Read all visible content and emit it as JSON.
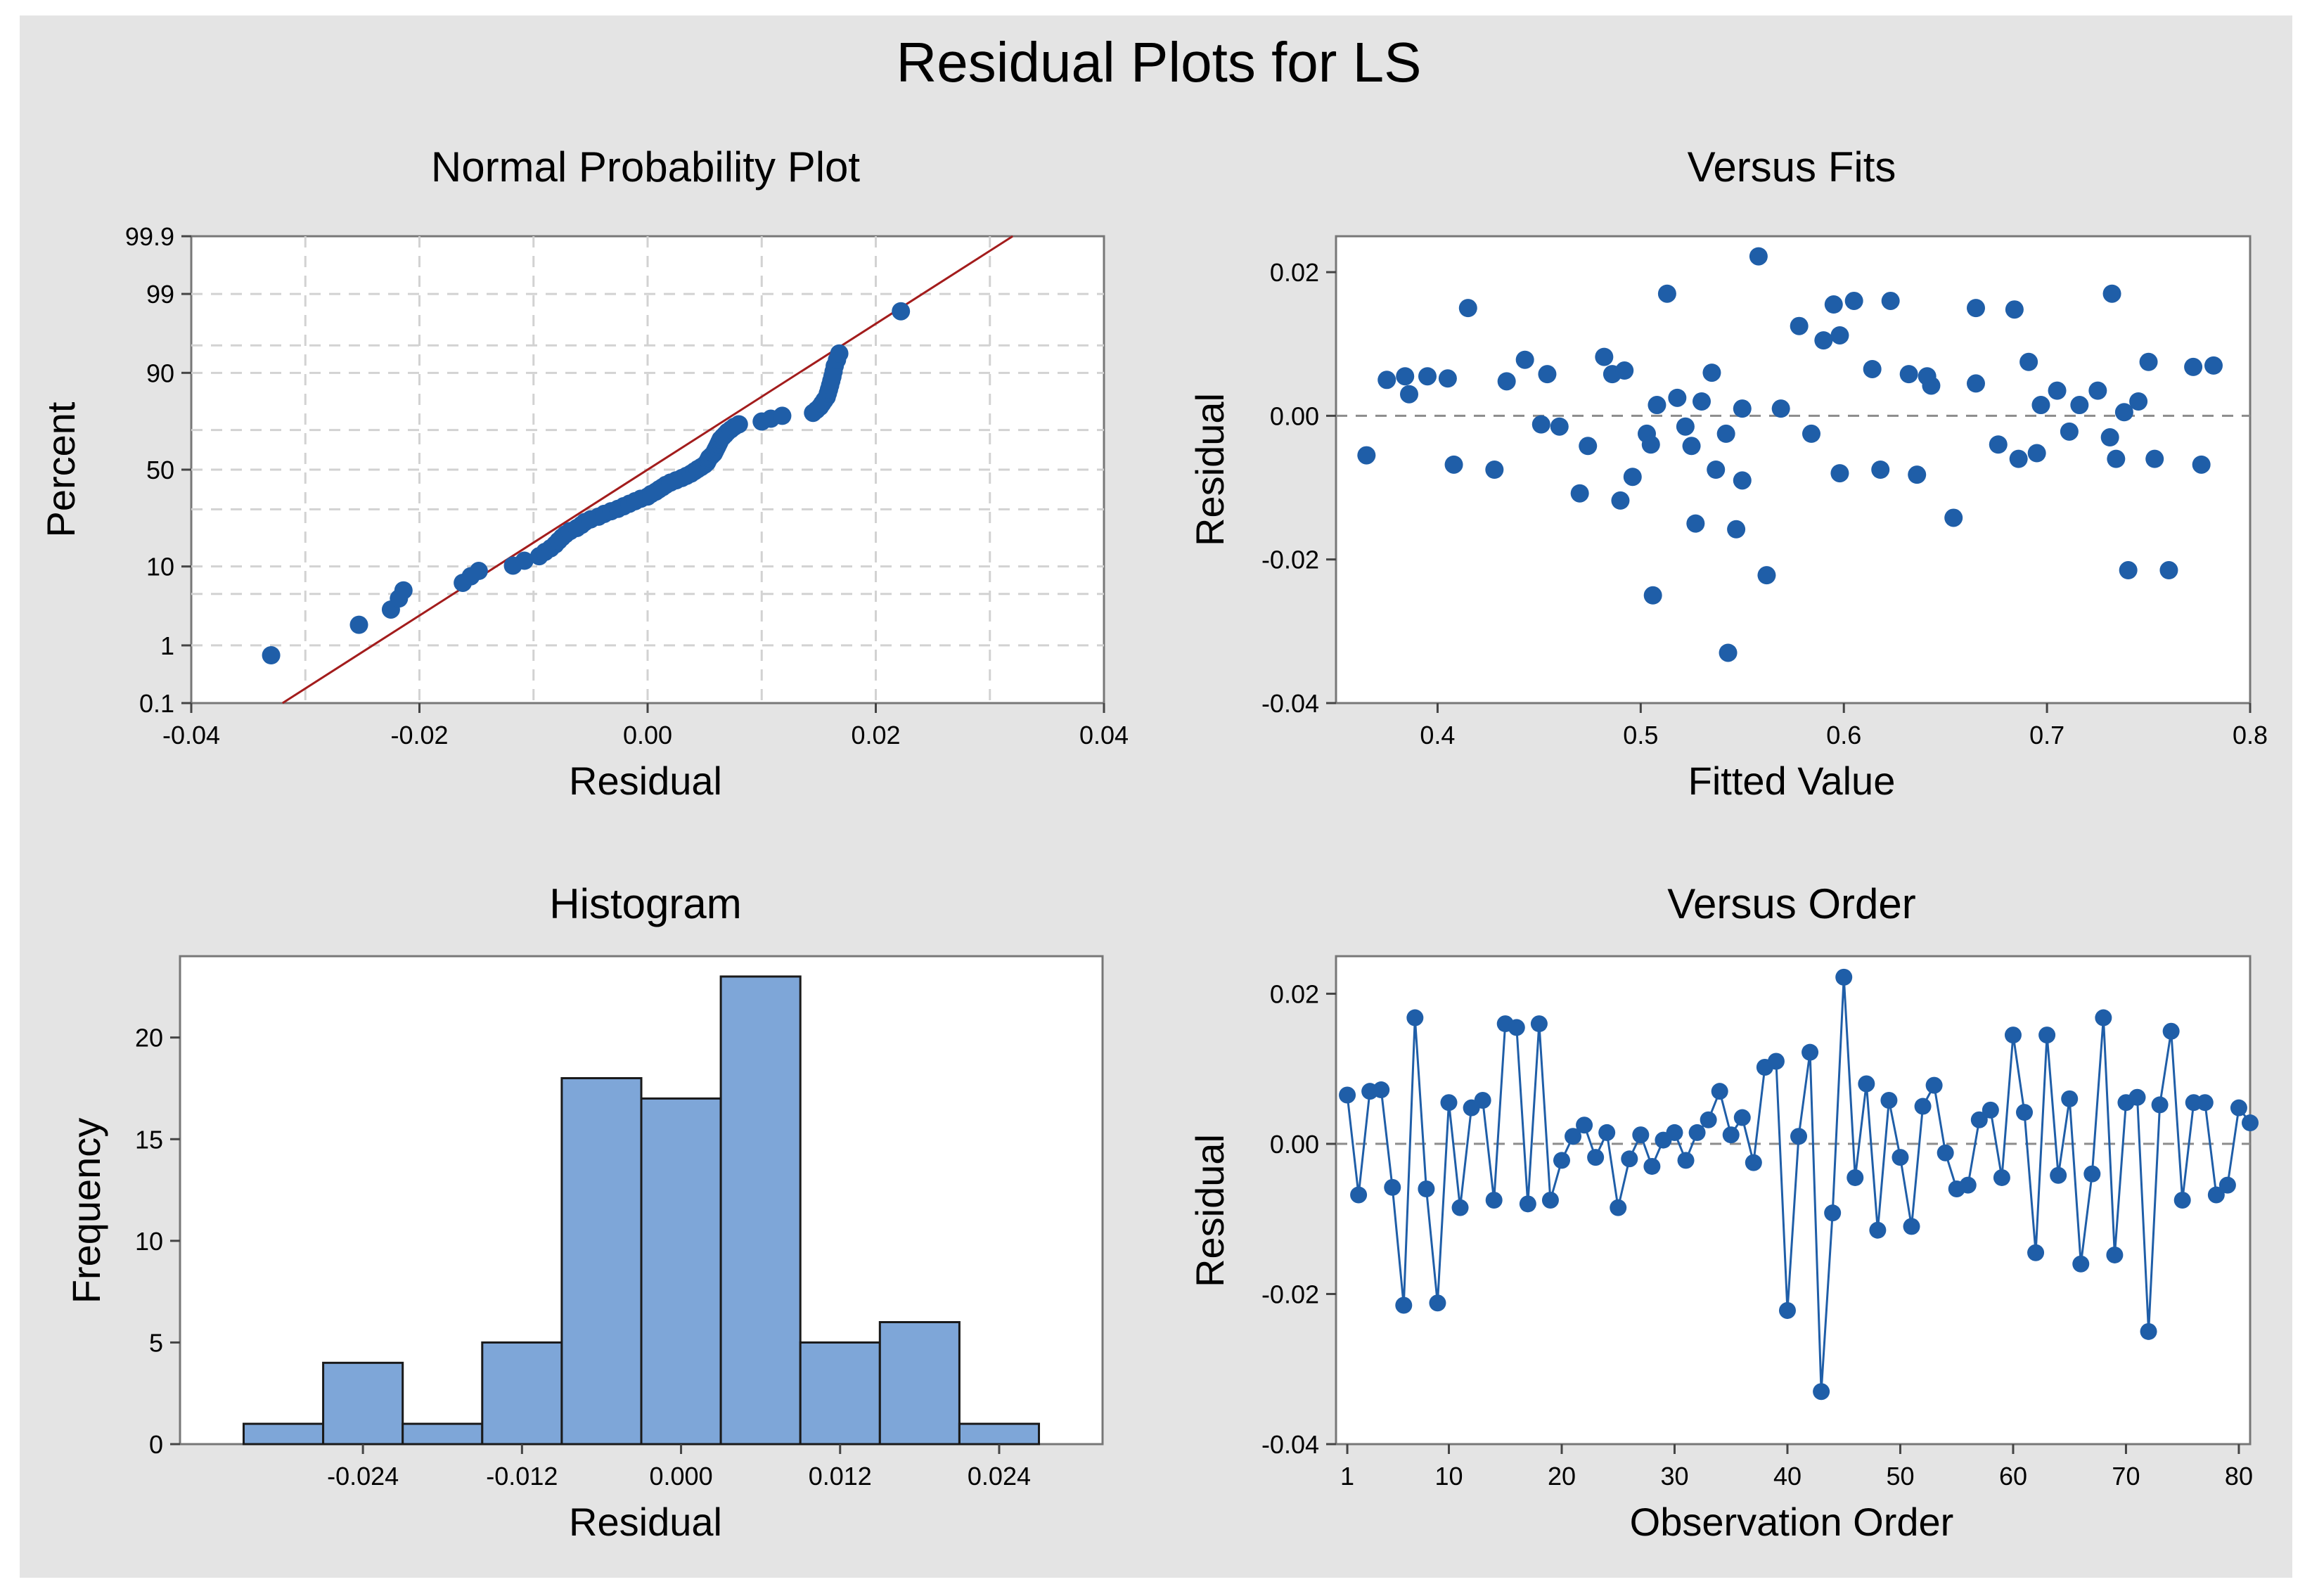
{
  "figure": {
    "title": "Residual Plots for LS"
  },
  "colors": {
    "panel": "#e4e4e4",
    "marker": "#1f5ea8",
    "fit_line": "#a31c1c",
    "bar_fill": "#7ea6d8",
    "bar_edge": "#1a1a1a"
  },
  "chart_data": [
    {
      "type": "scatter",
      "title": "Normal Probability Plot",
      "xlabel": "Residual",
      "ylabel": "Percent",
      "xlim": [
        -0.04,
        0.04
      ],
      "xticks": [
        "-0.04",
        "-0.02",
        "0.00",
        "0.02",
        "0.04"
      ],
      "yticks": [
        "0.1",
        "1",
        "10",
        "50",
        "90",
        "99",
        "99.9"
      ],
      "y_scale": "normal probability",
      "fit_line": {
        "x": [
          -0.032,
          0.032
        ],
        "percent": [
          0.1,
          99.9
        ]
      },
      "points": [
        {
          "x": -0.033,
          "p": 0.7
        },
        {
          "x": -0.0253,
          "p": 2.0
        },
        {
          "x": -0.0225,
          "p": 3.2
        },
        {
          "x": -0.0218,
          "p": 4.4
        },
        {
          "x": -0.0214,
          "p": 5.5
        },
        {
          "x": -0.0162,
          "p": 6.7
        },
        {
          "x": -0.0155,
          "p": 7.9
        },
        {
          "x": -0.0148,
          "p": 9.0
        },
        {
          "x": -0.0118,
          "p": 10.2
        },
        {
          "x": -0.0108,
          "p": 11.4
        },
        {
          "x": -0.0095,
          "p": 12.6
        },
        {
          "x": -0.009,
          "p": 13.8
        },
        {
          "x": -0.0085,
          "p": 14.9
        },
        {
          "x": -0.0081,
          "p": 16.1
        },
        {
          "x": -0.0078,
          "p": 17.3
        },
        {
          "x": -0.0075,
          "p": 18.5
        },
        {
          "x": -0.0072,
          "p": 19.6
        },
        {
          "x": -0.0068,
          "p": 20.8
        },
        {
          "x": -0.0062,
          "p": 22.0
        },
        {
          "x": -0.0058,
          "p": 23.2
        },
        {
          "x": -0.0055,
          "p": 24.4
        },
        {
          "x": -0.005,
          "p": 25.5
        },
        {
          "x": -0.0043,
          "p": 26.7
        },
        {
          "x": -0.0038,
          "p": 27.9
        },
        {
          "x": -0.0032,
          "p": 29.1
        },
        {
          "x": -0.0026,
          "p": 30.2
        },
        {
          "x": -0.0021,
          "p": 31.4
        },
        {
          "x": -0.0016,
          "p": 32.6
        },
        {
          "x": -0.0011,
          "p": 33.8
        },
        {
          "x": -0.0006,
          "p": 35.0
        },
        {
          "x": 0.0,
          "p": 36.1
        },
        {
          "x": 0.0003,
          "p": 37.3
        },
        {
          "x": 0.0007,
          "p": 38.5
        },
        {
          "x": 0.001,
          "p": 39.7
        },
        {
          "x": 0.0013,
          "p": 40.8
        },
        {
          "x": 0.0016,
          "p": 42.0
        },
        {
          "x": 0.002,
          "p": 43.2
        },
        {
          "x": 0.0025,
          "p": 44.4
        },
        {
          "x": 0.003,
          "p": 45.6
        },
        {
          "x": 0.0034,
          "p": 46.7
        },
        {
          "x": 0.0038,
          "p": 47.9
        },
        {
          "x": 0.0041,
          "p": 49.1
        },
        {
          "x": 0.0044,
          "p": 50.3
        },
        {
          "x": 0.0047,
          "p": 51.4
        },
        {
          "x": 0.005,
          "p": 52.6
        },
        {
          "x": 0.0052,
          "p": 53.8
        },
        {
          "x": 0.0053,
          "p": 55.0
        },
        {
          "x": 0.0054,
          "p": 56.2
        },
        {
          "x": 0.0056,
          "p": 57.3
        },
        {
          "x": 0.0058,
          "p": 58.5
        },
        {
          "x": 0.0059,
          "p": 59.7
        },
        {
          "x": 0.006,
          "p": 60.9
        },
        {
          "x": 0.0061,
          "p": 62.0
        },
        {
          "x": 0.0062,
          "p": 63.2
        },
        {
          "x": 0.0063,
          "p": 64.4
        },
        {
          "x": 0.0064,
          "p": 65.6
        },
        {
          "x": 0.0066,
          "p": 66.8
        },
        {
          "x": 0.0068,
          "p": 67.9
        },
        {
          "x": 0.007,
          "p": 69.1
        },
        {
          "x": 0.0073,
          "p": 70.3
        },
        {
          "x": 0.0076,
          "p": 71.5
        },
        {
          "x": 0.008,
          "p": 72.6
        },
        {
          "x": 0.01,
          "p": 73.8
        },
        {
          "x": 0.0108,
          "p": 75.0
        },
        {
          "x": 0.0118,
          "p": 76.2
        },
        {
          "x": 0.0145,
          "p": 77.4
        },
        {
          "x": 0.0148,
          "p": 78.5
        },
        {
          "x": 0.0151,
          "p": 79.7
        },
        {
          "x": 0.0153,
          "p": 80.9
        },
        {
          "x": 0.0155,
          "p": 82.1
        },
        {
          "x": 0.0157,
          "p": 83.2
        },
        {
          "x": 0.0158,
          "p": 84.4
        },
        {
          "x": 0.0159,
          "p": 85.6
        },
        {
          "x": 0.016,
          "p": 86.8
        },
        {
          "x": 0.0161,
          "p": 88.0
        },
        {
          "x": 0.0162,
          "p": 89.1
        },
        {
          "x": 0.0163,
          "p": 90.3
        },
        {
          "x": 0.0164,
          "p": 91.5
        },
        {
          "x": 0.0166,
          "p": 92.7
        },
        {
          "x": 0.0168,
          "p": 93.8
        },
        {
          "x": 0.0222,
          "p": 98.2
        }
      ]
    },
    {
      "type": "scatter",
      "title": "Versus Fits",
      "xlabel": "Fitted Value",
      "ylabel": "Residual",
      "xlim": [
        0.35,
        0.8
      ],
      "ylim": [
        -0.04,
        0.025
      ],
      "xticks": [
        "0.4",
        "0.5",
        "0.6",
        "0.7",
        "0.8"
      ],
      "yticks": [
        "-0.04",
        "-0.02",
        "0.00",
        "0.02"
      ],
      "reference_line": 0.0,
      "points": [
        {
          "x": 0.365,
          "y": -0.0055
        },
        {
          "x": 0.375,
          "y": 0.005
        },
        {
          "x": 0.384,
          "y": 0.0055
        },
        {
          "x": 0.386,
          "y": 0.003
        },
        {
          "x": 0.395,
          "y": 0.0055
        },
        {
          "x": 0.405,
          "y": 0.0052
        },
        {
          "x": 0.408,
          "y": -0.0068
        },
        {
          "x": 0.415,
          "y": 0.015
        },
        {
          "x": 0.428,
          "y": -0.0075
        },
        {
          "x": 0.434,
          "y": 0.0048
        },
        {
          "x": 0.443,
          "y": 0.0078
        },
        {
          "x": 0.451,
          "y": -0.0012
        },
        {
          "x": 0.454,
          "y": 0.0058
        },
        {
          "x": 0.46,
          "y": -0.0015
        },
        {
          "x": 0.47,
          "y": -0.0108
        },
        {
          "x": 0.474,
          "y": -0.0042
        },
        {
          "x": 0.482,
          "y": 0.0082
        },
        {
          "x": 0.486,
          "y": 0.0058
        },
        {
          "x": 0.49,
          "y": -0.0118
        },
        {
          "x": 0.492,
          "y": 0.0063
        },
        {
          "x": 0.496,
          "y": -0.0085
        },
        {
          "x": 0.503,
          "y": -0.0025
        },
        {
          "x": 0.505,
          "y": -0.004
        },
        {
          "x": 0.506,
          "y": -0.025
        },
        {
          "x": 0.508,
          "y": 0.0015
        },
        {
          "x": 0.513,
          "y": 0.017
        },
        {
          "x": 0.518,
          "y": 0.0025
        },
        {
          "x": 0.522,
          "y": -0.0015
        },
        {
          "x": 0.525,
          "y": -0.0042
        },
        {
          "x": 0.527,
          "y": -0.015
        },
        {
          "x": 0.53,
          "y": 0.002
        },
        {
          "x": 0.535,
          "y": 0.006
        },
        {
          "x": 0.537,
          "y": -0.0075
        },
        {
          "x": 0.542,
          "y": -0.0025
        },
        {
          "x": 0.543,
          "y": -0.033
        },
        {
          "x": 0.547,
          "y": -0.0158
        },
        {
          "x": 0.55,
          "y": 0.001
        },
        {
          "x": 0.55,
          "y": -0.009
        },
        {
          "x": 0.558,
          "y": 0.0222
        },
        {
          "x": 0.562,
          "y": -0.0222
        },
        {
          "x": 0.569,
          "y": 0.001
        },
        {
          "x": 0.578,
          "y": 0.0125
        },
        {
          "x": 0.584,
          "y": -0.0025
        },
        {
          "x": 0.59,
          "y": 0.0105
        },
        {
          "x": 0.595,
          "y": 0.0155
        },
        {
          "x": 0.598,
          "y": 0.0112
        },
        {
          "x": 0.598,
          "y": -0.008
        },
        {
          "x": 0.605,
          "y": 0.016
        },
        {
          "x": 0.614,
          "y": 0.0065
        },
        {
          "x": 0.618,
          "y": -0.0075
        },
        {
          "x": 0.623,
          "y": 0.016
        },
        {
          "x": 0.632,
          "y": 0.0058
        },
        {
          "x": 0.636,
          "y": -0.0082
        },
        {
          "x": 0.641,
          "y": 0.0055
        },
        {
          "x": 0.643,
          "y": 0.0042
        },
        {
          "x": 0.654,
          "y": -0.0142
        },
        {
          "x": 0.665,
          "y": 0.015
        },
        {
          "x": 0.665,
          "y": 0.0045
        },
        {
          "x": 0.676,
          "y": -0.004
        },
        {
          "x": 0.684,
          "y": 0.0148
        },
        {
          "x": 0.686,
          "y": -0.006
        },
        {
          "x": 0.691,
          "y": 0.0075
        },
        {
          "x": 0.695,
          "y": -0.0052
        },
        {
          "x": 0.697,
          "y": 0.0015
        },
        {
          "x": 0.705,
          "y": 0.0035
        },
        {
          "x": 0.711,
          "y": -0.0022
        },
        {
          "x": 0.716,
          "y": 0.0015
        },
        {
          "x": 0.725,
          "y": 0.0035
        },
        {
          "x": 0.731,
          "y": -0.003
        },
        {
          "x": 0.732,
          "y": 0.017
        },
        {
          "x": 0.734,
          "y": -0.006
        },
        {
          "x": 0.738,
          "y": 0.0005
        },
        {
          "x": 0.74,
          "y": -0.0215
        },
        {
          "x": 0.745,
          "y": 0.002
        },
        {
          "x": 0.75,
          "y": 0.0075
        },
        {
          "x": 0.753,
          "y": -0.006
        },
        {
          "x": 0.76,
          "y": -0.0215
        },
        {
          "x": 0.772,
          "y": 0.0068
        },
        {
          "x": 0.776,
          "y": -0.0068
        },
        {
          "x": 0.782,
          "y": 0.007
        }
      ]
    },
    {
      "type": "bar",
      "title": "Histogram",
      "xlabel": "Residual",
      "ylabel": "Frequency",
      "ylim": [
        0,
        24
      ],
      "xticks": [
        "-0.024",
        "-0.012",
        "0.000",
        "0.012",
        "0.024"
      ],
      "yticks": [
        "0",
        "5",
        "10",
        "15",
        "20"
      ],
      "bin_width": 0.006,
      "bin_midpoints": [
        -0.03,
        -0.024,
        -0.018,
        -0.012,
        -0.006,
        0.0,
        0.006,
        0.012,
        0.018,
        0.024
      ],
      "values": [
        1,
        4,
        1,
        5,
        18,
        17,
        23,
        5,
        6,
        1
      ]
    },
    {
      "type": "line",
      "title": "Versus Order",
      "xlabel": "Observation Order",
      "ylabel": "Residual",
      "xlim": [
        0,
        81
      ],
      "ylim": [
        -0.04,
        0.025
      ],
      "xticks": [
        "1",
        "10",
        "20",
        "30",
        "40",
        "50",
        "60",
        "70",
        "80"
      ],
      "yticks": [
        "-0.04",
        "-0.02",
        "0.00",
        "0.02"
      ],
      "reference_line": 0.0,
      "x": [
        1,
        2,
        3,
        4,
        5,
        6,
        7,
        8,
        9,
        10,
        11,
        12,
        13,
        14,
        15,
        16,
        17,
        18,
        19,
        20,
        21,
        22,
        23,
        24,
        25,
        26,
        27,
        28,
        29,
        30,
        31,
        32,
        33,
        34,
        35,
        36,
        37,
        38,
        39,
        40,
        41,
        42,
        43,
        44,
        45,
        46,
        47,
        48,
        49,
        50,
        51,
        52,
        53,
        54,
        55,
        56,
        57,
        58,
        59,
        60,
        61,
        62,
        63,
        64,
        65,
        66,
        67,
        68,
        69,
        70,
        71,
        72,
        73,
        74,
        75,
        76,
        77,
        78,
        79,
        80,
        81
      ],
      "y": [
        0.0065,
        -0.0068,
        0.007,
        0.0072,
        -0.0058,
        -0.0215,
        0.0168,
        -0.006,
        -0.0212,
        0.0055,
        -0.0085,
        0.0048,
        0.0058,
        -0.0075,
        0.016,
        0.0155,
        -0.008,
        0.016,
        -0.0075,
        -0.0022,
        0.001,
        0.0025,
        -0.0018,
        0.0015,
        -0.0085,
        -0.002,
        0.0012,
        -0.003,
        0.0005,
        0.0015,
        -0.0022,
        0.0015,
        0.0032,
        0.007,
        0.0012,
        0.0035,
        -0.0025,
        0.0102,
        0.011,
        -0.0222,
        0.001,
        0.0122,
        -0.033,
        -0.0092,
        0.0222,
        -0.0045,
        0.008,
        -0.0115,
        0.0058,
        -0.0018,
        -0.011,
        0.005,
        0.0078,
        -0.0012,
        -0.006,
        -0.0055,
        0.0032,
        0.0045,
        -0.0045,
        0.0145,
        0.0042,
        -0.0145,
        0.0145,
        -0.0042,
        0.006,
        -0.016,
        -0.004,
        0.0168,
        -0.0148,
        0.0055,
        0.0062,
        -0.025,
        0.0052,
        0.015,
        -0.0075,
        0.0055,
        0.0055,
        -0.0068,
        -0.0055,
        0.0048,
        0.0028
      ]
    }
  ]
}
